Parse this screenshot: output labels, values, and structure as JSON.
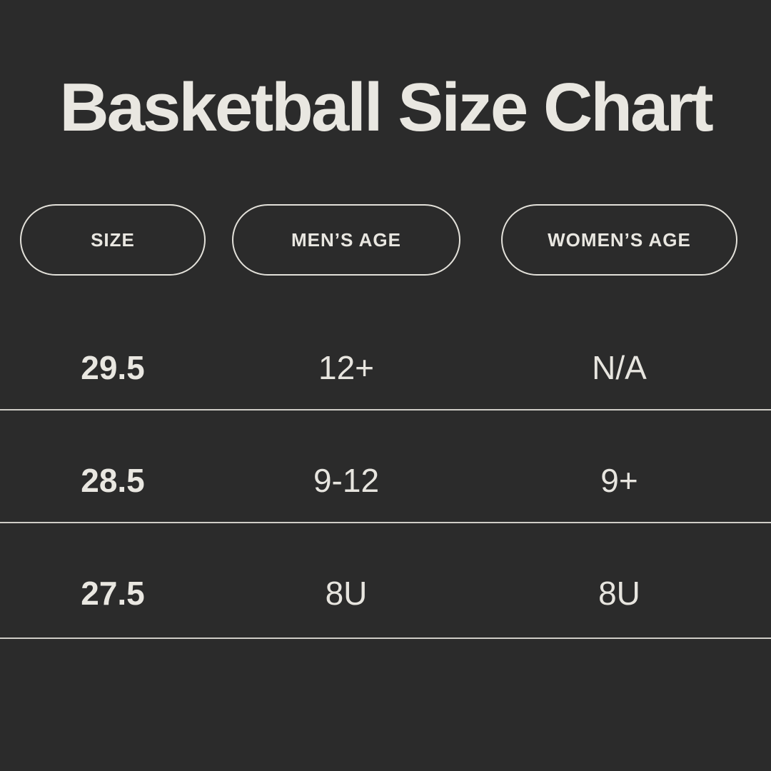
{
  "page_title": "Basketball Size Chart",
  "chart_data": {
    "type": "table",
    "title": "Basketball Size Chart",
    "columns": [
      "SIZE",
      "MEN’S AGE",
      "WOMEN’S AGE"
    ],
    "rows": [
      [
        "29.5",
        "12+",
        "N/A"
      ],
      [
        "28.5",
        "9-12",
        "9+"
      ],
      [
        "27.5",
        "8U",
        "8U"
      ]
    ],
    "layout": {
      "header_style": "outlined-pill",
      "row_dividers": true,
      "grid": "off"
    }
  },
  "colors": {
    "background": "#2b2b2b",
    "text": "#e9e7e1",
    "pill_border": "#e3e1da",
    "divider": "#cfcdc7"
  }
}
